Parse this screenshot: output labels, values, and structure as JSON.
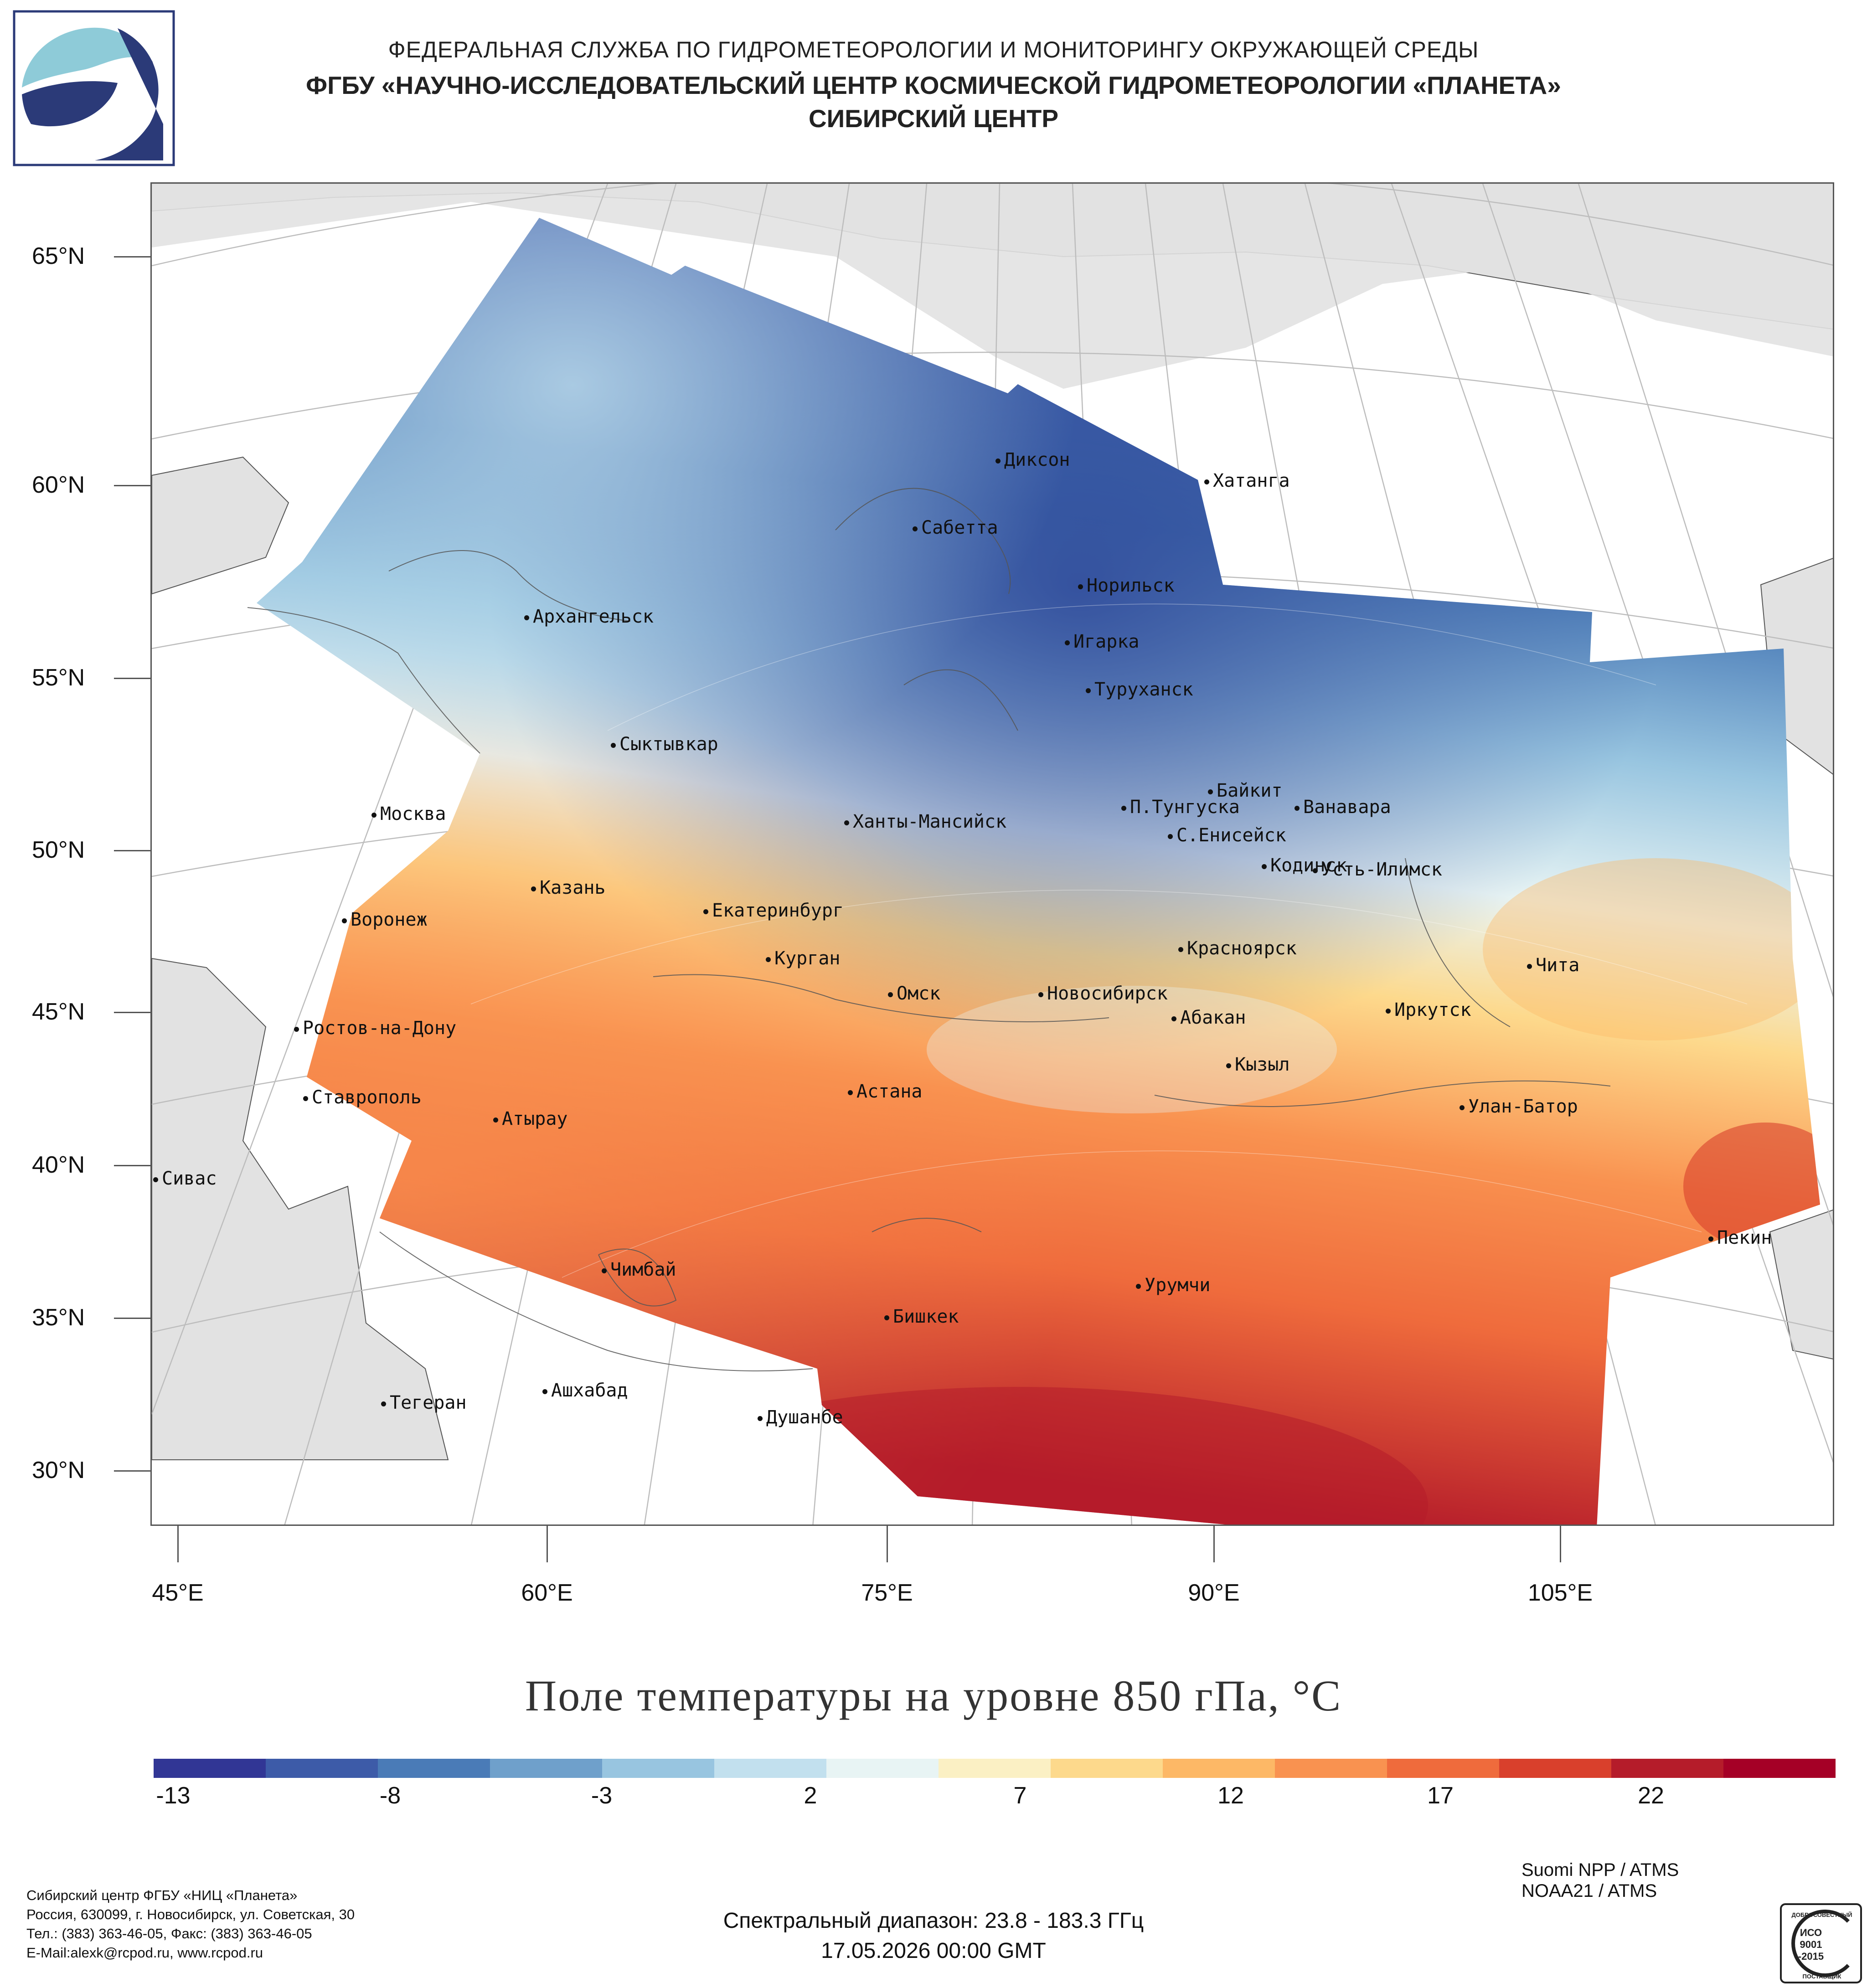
{
  "header": {
    "line1": "ФЕДЕРАЛЬНАЯ СЛУЖБА ПО ГИДРОМЕТЕОРОЛОГИИ И МОНИТОРИНГУ ОКРУЖАЮЩЕЙ СРЕДЫ",
    "line2": "ФГБУ «НАУЧНО-ИССЛЕДОВАТЕЛЬСКИЙ ЦЕНТР КОСМИЧЕСКОЙ ГИДРОМЕТЕОРОЛОГИИ «ПЛАНЕТА»",
    "line3": "СИБИРСКИЙ ЦЕНТР"
  },
  "logo": {
    "icon": "planeta-logo-icon",
    "color": "#2b3a78",
    "accent": "#8ecbd8"
  },
  "map": {
    "lat_labels": [
      "65°N",
      "60°N",
      "55°N",
      "50°N",
      "45°N",
      "40°N",
      "35°N",
      "30°N"
    ],
    "lon_labels": [
      "45°E",
      "60°E",
      "75°E",
      "90°E",
      "105°E"
    ],
    "cities": [
      {
        "name": "Диксон"
      },
      {
        "name": "Хатанга"
      },
      {
        "name": "Сабетта"
      },
      {
        "name": "Норильск"
      },
      {
        "name": "Архангельск"
      },
      {
        "name": "Игарка"
      },
      {
        "name": "Туруханск"
      },
      {
        "name": "Сыктывкар"
      },
      {
        "name": "Байкит"
      },
      {
        "name": "Москва"
      },
      {
        "name": "Ханты-Мансийск"
      },
      {
        "name": "П.Тунгуска"
      },
      {
        "name": "Ванавара"
      },
      {
        "name": "С.Енисейск"
      },
      {
        "name": "Кодинск"
      },
      {
        "name": "Усть-Илимск"
      },
      {
        "name": "Казань"
      },
      {
        "name": "Воронеж"
      },
      {
        "name": "Екатеринбург"
      },
      {
        "name": "Красноярск"
      },
      {
        "name": "Курган"
      },
      {
        "name": "Чита"
      },
      {
        "name": "Омск"
      },
      {
        "name": "Новосибирск"
      },
      {
        "name": "Иркутск"
      },
      {
        "name": "Ростов-на-Дону"
      },
      {
        "name": "Абакан"
      },
      {
        "name": "Кызыл"
      },
      {
        "name": "Ставрополь"
      },
      {
        "name": "Астана"
      },
      {
        "name": "Улан-Батор"
      },
      {
        "name": "Атырау"
      },
      {
        "name": "Сивас"
      },
      {
        "name": "Пекин"
      },
      {
        "name": "Чимбай"
      },
      {
        "name": "Урумчи"
      },
      {
        "name": "Бишкек"
      },
      {
        "name": "Ашхабад"
      },
      {
        "name": "Тегеран"
      },
      {
        "name": "Душанбе"
      }
    ]
  },
  "title": "Поле температуры на уровне 850 гПа, °С",
  "colorbar": {
    "labels": [
      "-13",
      "-8",
      "-3",
      "2",
      "7",
      "12",
      "17",
      "22"
    ],
    "colors": [
      "#313695",
      "#3d5ba8",
      "#4a7bb7",
      "#6fa0cb",
      "#98c5e0",
      "#c2e0ee",
      "#e8f4f4",
      "#fbf0c4",
      "#fdd98c",
      "#fdb866",
      "#f99250",
      "#ef6b3c",
      "#d9402c",
      "#b51c2a",
      "#a50026"
    ]
  },
  "footer": {
    "address_lines": [
      "Сибирский центр ФГБУ «НИЦ «Планета»",
      "Россия, 630099, г. Новосибирск, ул. Советская, 30",
      "Тел.: (383) 363-46-05, Факс: (383) 363-46-05",
      "E-Mail:alexk@rcpod.ru, www.rcpod.ru"
    ],
    "spectral": "Спектральный диапазон: 23.8 - 183.3 ГГц",
    "datetime": "17.05.2026 00:00 GMT",
    "satellite1": "Suomi NPP / ATMS",
    "satellite2": "NOAA21 / ATMS",
    "iso": {
      "top": "ДОБРОСОВЕСТНЫЙ",
      "mid1": "ИСО",
      "mid2": "9001",
      "mid3": "-2015",
      "bottom": "ПОСТАВЩИК"
    }
  }
}
